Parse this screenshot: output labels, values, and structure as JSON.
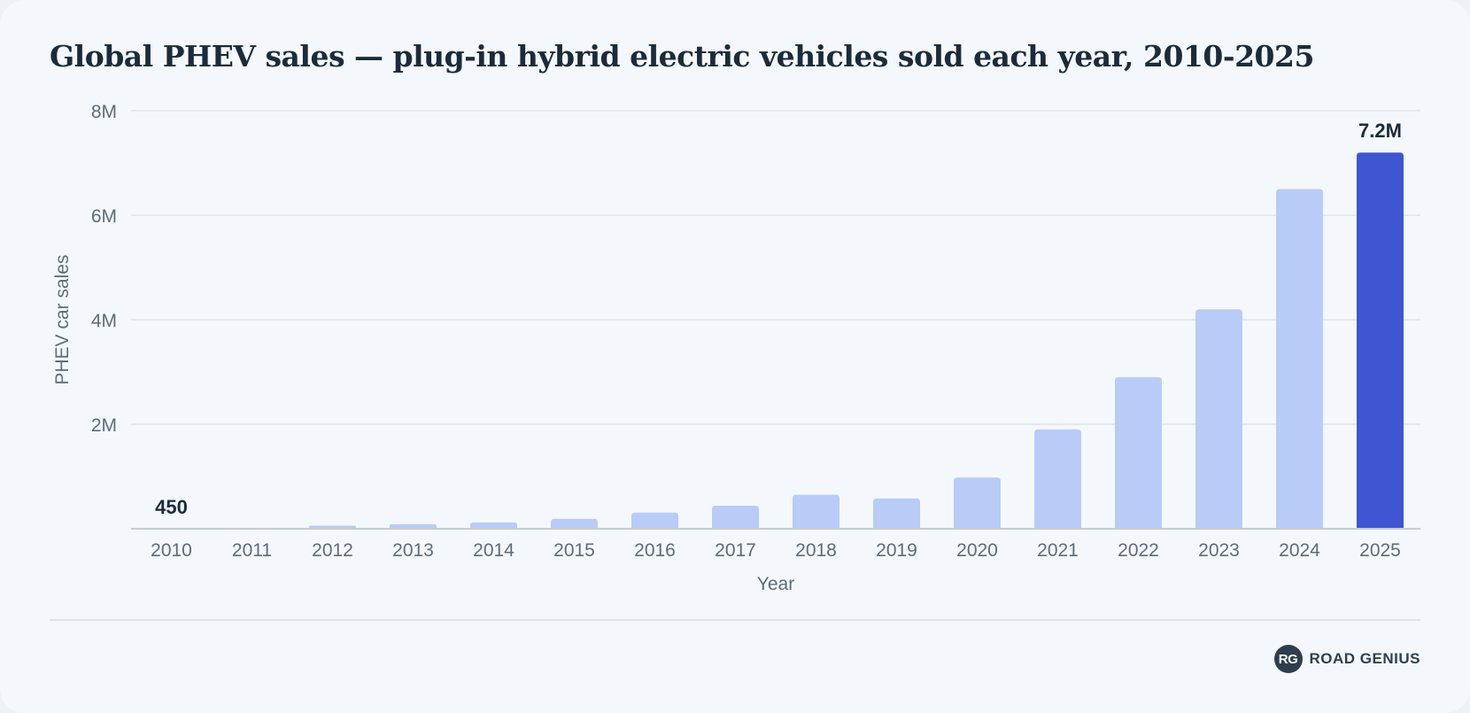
{
  "chart_data": {
    "type": "bar",
    "title": "Global PHEV sales — plug-in hybrid electric vehicles sold each year, 2010-2025",
    "xlabel": "Year",
    "ylabel": "PHEV car sales",
    "categories": [
      "2010",
      "2011",
      "2012",
      "2013",
      "2014",
      "2015",
      "2016",
      "2017",
      "2018",
      "2019",
      "2020",
      "2021",
      "2022",
      "2023",
      "2024",
      "2025"
    ],
    "values": [
      450,
      10000,
      60000,
      90000,
      120000,
      190000,
      310000,
      440000,
      650000,
      580000,
      980000,
      1900000,
      2900000,
      4200000,
      6500000,
      7200000
    ],
    "ylim": [
      0,
      8000000
    ],
    "yticks": [
      {
        "value": 2000000,
        "label": "2M"
      },
      {
        "value": 4000000,
        "label": "4M"
      },
      {
        "value": 6000000,
        "label": "6M"
      },
      {
        "value": 8000000,
        "label": "8M"
      }
    ],
    "data_labels": [
      {
        "index": 0,
        "text": "450"
      },
      {
        "index": 15,
        "text": "7.2M"
      }
    ],
    "highlight_index": 15,
    "grid": true,
    "colors": {
      "bar": "#b9cbf7",
      "highlight": "#3f55d2",
      "grid": "#dfe4ea",
      "axis": "#c5ccd4"
    }
  },
  "brand": {
    "mark": "RG",
    "name": "ROAD GENIUS"
  }
}
